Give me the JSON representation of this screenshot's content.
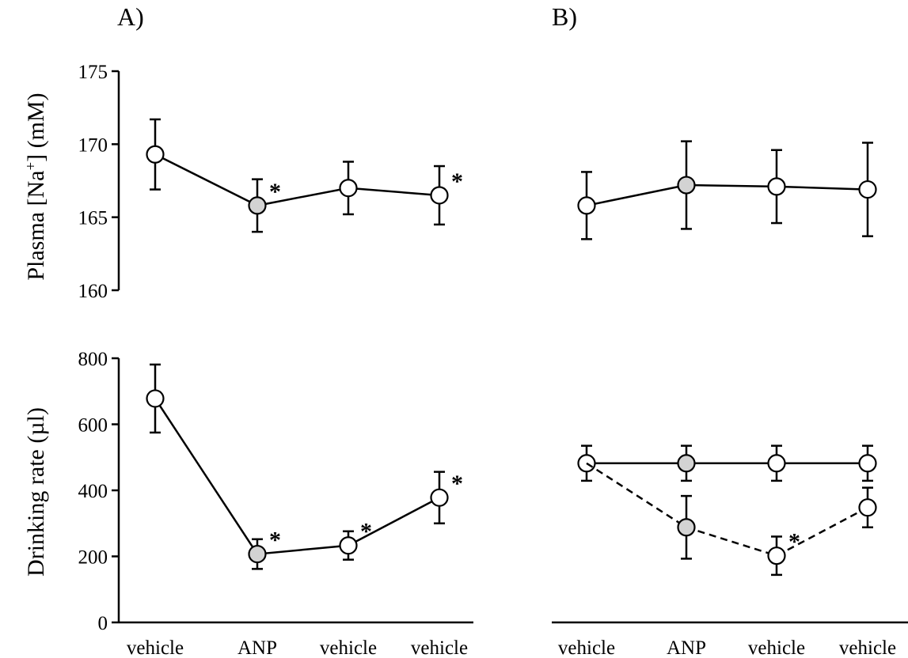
{
  "panels": {
    "a_label": "A)",
    "b_label": "B)"
  },
  "colors": {
    "open_marker": "#ffffff",
    "filled_marker": "#d3d3d3",
    "line": "#000000"
  },
  "chart_data": [
    {
      "id": "A-top",
      "type": "line",
      "panel": "A)",
      "ylabel": "Plasma [Na+] (mM)",
      "ylim": [
        160,
        175
      ],
      "yticks": [
        160,
        165,
        170,
        175
      ],
      "categories": [
        "vehicle",
        "ANP",
        "vehicle",
        "vehicle"
      ],
      "series": [
        {
          "values": [
            169.3,
            165.8,
            167.0,
            166.5
          ],
          "errors": [
            2.4,
            1.8,
            1.8,
            2.0
          ],
          "markers": [
            "open",
            "filled",
            "open",
            "open"
          ],
          "significant": [
            false,
            true,
            false,
            true
          ],
          "line_style": "solid"
        }
      ]
    },
    {
      "id": "B-top",
      "type": "line",
      "panel": "B)",
      "ylim": [
        160,
        175
      ],
      "categories": [
        "vehicle",
        "ANP",
        "vehicle",
        "vehicle"
      ],
      "series": [
        {
          "values": [
            165.8,
            167.2,
            167.1,
            166.9
          ],
          "errors": [
            2.3,
            3.0,
            2.5,
            3.2
          ],
          "markers": [
            "open",
            "filled",
            "open",
            "open"
          ],
          "significant": [
            false,
            false,
            false,
            false
          ],
          "line_style": "solid"
        }
      ]
    },
    {
      "id": "A-bottom",
      "type": "line",
      "panel": "A)",
      "ylabel": "Drinking rate (µl)",
      "ylim": [
        0,
        800
      ],
      "yticks": [
        0,
        200,
        400,
        600,
        800
      ],
      "categories": [
        "vehicle",
        "ANP",
        "vehicle",
        "vehicle"
      ],
      "series": [
        {
          "values": [
            678,
            207,
            233,
            378
          ],
          "errors": [
            103,
            45,
            43,
            78
          ],
          "markers": [
            "open",
            "filled",
            "open",
            "open"
          ],
          "significant": [
            false,
            true,
            true,
            true
          ],
          "line_style": "solid"
        }
      ]
    },
    {
      "id": "B-bottom",
      "type": "line",
      "panel": "B)",
      "ylim": [
        0,
        800
      ],
      "categories": [
        "vehicle",
        "ANP",
        "vehicle",
        "vehicle"
      ],
      "series": [
        {
          "values": [
            482,
            482,
            482,
            482
          ],
          "errors": [
            53,
            53,
            53,
            53
          ],
          "markers": [
            "open",
            "filled",
            "open",
            "open"
          ],
          "significant": [
            false,
            false,
            false,
            false
          ],
          "line_style": "solid"
        },
        {
          "values": [
            482,
            288,
            202,
            348
          ],
          "errors": [
            0,
            95,
            58,
            60
          ],
          "markers": [
            "none",
            "filled",
            "open",
            "open"
          ],
          "significant": [
            false,
            false,
            true,
            false
          ],
          "line_style": "dashed"
        }
      ]
    }
  ]
}
